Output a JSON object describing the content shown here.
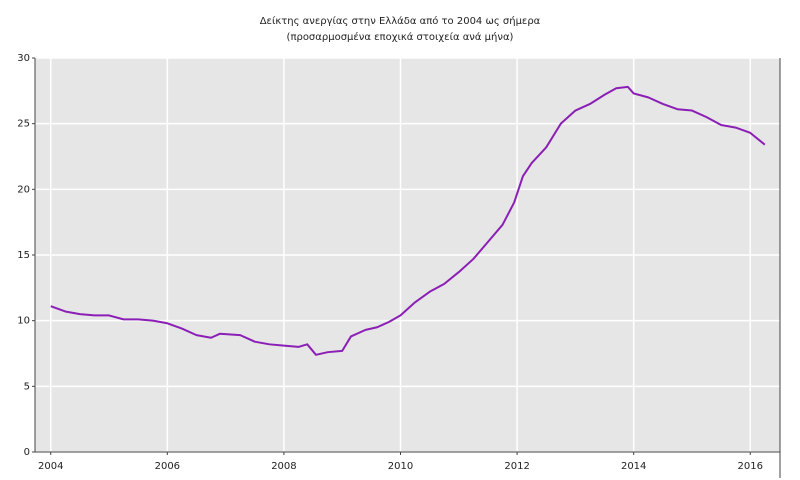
{
  "chart_data": {
    "type": "line",
    "title": "Δείκτης ανεργίας στην Ελλάδα από το 2004 ως σήμερα",
    "subtitle": "(προσαρμοσμένα εποχικά στοιχεία ανά μήνα)",
    "x": [
      2004.0,
      2004.25,
      2004.5,
      2004.75,
      2005.0,
      2005.25,
      2005.5,
      2005.75,
      2006.0,
      2006.25,
      2006.5,
      2006.75,
      2006.9,
      2007.25,
      2007.5,
      2007.75,
      2008.0,
      2008.25,
      2008.4,
      2008.55,
      2008.75,
      2009.0,
      2009.15,
      2009.4,
      2009.6,
      2009.8,
      2010.0,
      2010.25,
      2010.5,
      2010.75,
      2011.0,
      2011.25,
      2011.5,
      2011.75,
      2011.95,
      2012.1,
      2012.25,
      2012.5,
      2012.75,
      2013.0,
      2013.25,
      2013.5,
      2013.7,
      2013.9,
      2014.0,
      2014.25,
      2014.5,
      2014.75,
      2015.0,
      2015.25,
      2015.5,
      2015.75,
      2016.0,
      2016.25
    ],
    "series": [
      {
        "color": "#8b1fb5",
        "values": [
          11.1,
          10.7,
          10.5,
          10.4,
          10.4,
          10.1,
          10.1,
          10.0,
          9.8,
          9.4,
          8.9,
          8.7,
          9.0,
          8.9,
          8.4,
          8.2,
          8.1,
          8.0,
          8.2,
          7.4,
          7.6,
          7.7,
          8.8,
          9.3,
          9.5,
          9.9,
          10.4,
          11.4,
          12.2,
          12.8,
          13.7,
          14.7,
          16.0,
          17.3,
          19.0,
          21.0,
          22.0,
          23.2,
          25.0,
          26.0,
          26.5,
          27.2,
          27.7,
          27.8,
          27.3,
          27.0,
          26.5,
          26.1,
          26.0,
          25.5,
          24.9,
          24.7,
          24.3,
          23.4
        ]
      }
    ],
    "xlim": [
      2003.73,
      2016.51
    ],
    "xticks": [
      2004,
      2006,
      2008,
      2010,
      2012,
      2014,
      2016
    ],
    "ylim": [
      0,
      30
    ],
    "yticks": [
      0,
      5,
      10,
      15,
      20,
      25,
      30
    ],
    "grid": true
  }
}
